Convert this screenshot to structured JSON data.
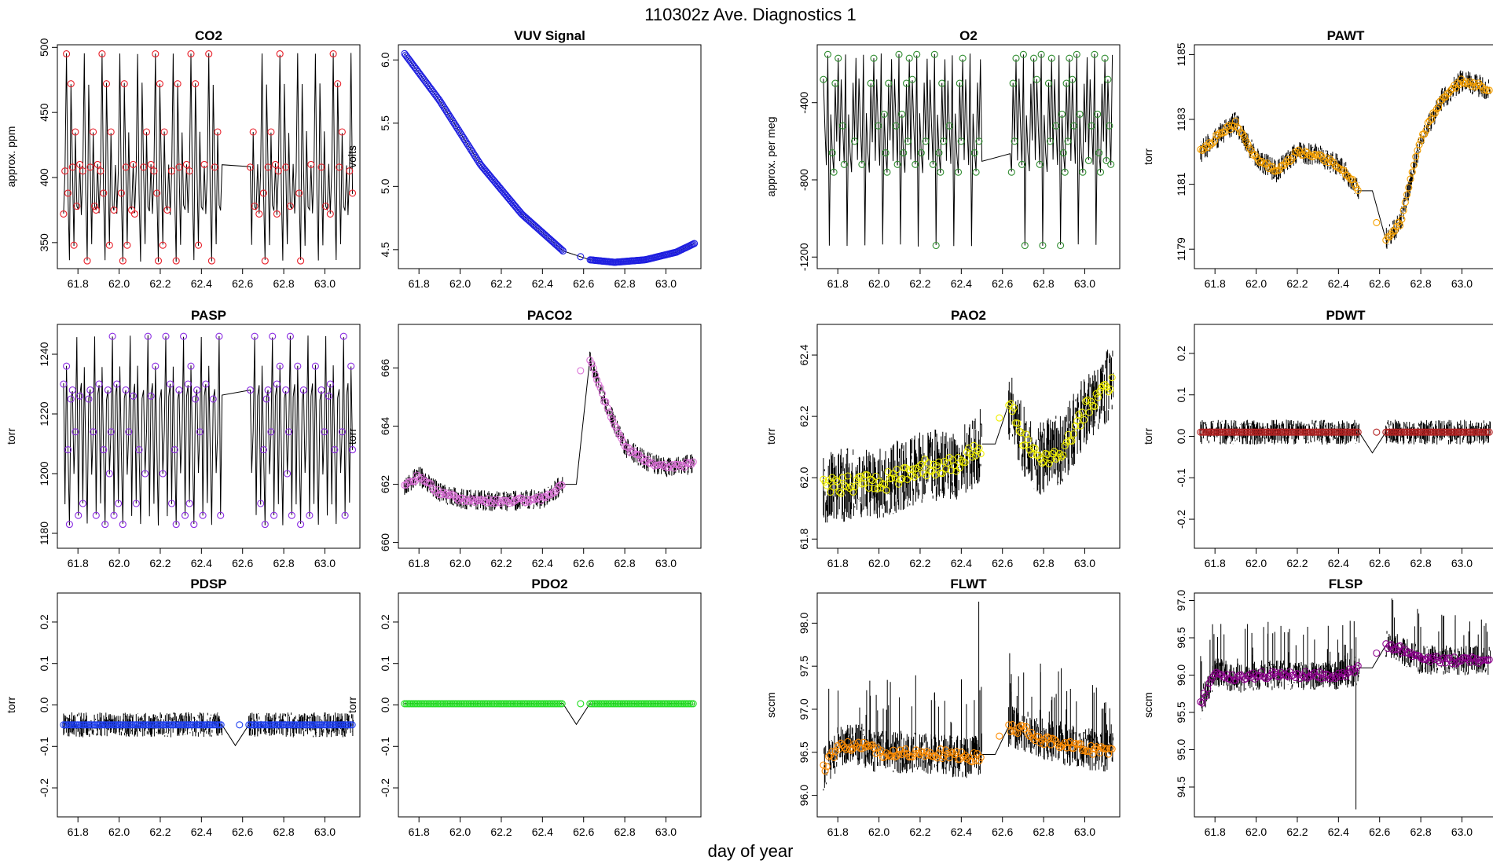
{
  "figure": {
    "title": "110302z   Ave. Diagnostics 1",
    "xlabel": "day of year"
  },
  "chart_data": [
    {
      "type": "line",
      "title": "CO2",
      "ylabel": "approx. ppm",
      "xlim": [
        61.7,
        63.17
      ],
      "ylim": [
        330,
        502
      ],
      "yticks": [
        350,
        400,
        450,
        500
      ],
      "xticks": [
        61.8,
        62.0,
        62.2,
        62.4,
        62.6,
        62.8,
        63.0
      ],
      "marker_color": "#e8202a",
      "pattern": "cycle",
      "levels": [
        372,
        405,
        495,
        388,
        336,
        472,
        408,
        348,
        435,
        378,
        375,
        410
      ],
      "noise": 0,
      "gap": [
        62.5,
        62.63
      ]
    },
    {
      "type": "line",
      "title": "VUV Signal",
      "ylabel": "volts",
      "xlim": [
        61.7,
        63.17
      ],
      "ylim": [
        4.35,
        6.12
      ],
      "yticks": [
        4.5,
        5.0,
        5.5,
        6.0
      ],
      "xticks": [
        61.8,
        62.0,
        62.2,
        62.4,
        62.6,
        62.8,
        63.0
      ],
      "marker_color": "#1f1fe0",
      "pattern": "curve",
      "x": [
        61.73,
        61.9,
        62.1,
        62.3,
        62.5,
        62.63,
        62.75,
        62.9,
        63.05,
        63.14
      ],
      "y": [
        6.05,
        5.68,
        5.17,
        4.78,
        4.49,
        4.42,
        4.4,
        4.42,
        4.48,
        4.55
      ],
      "noise": 0,
      "gap": [
        62.5,
        62.63
      ]
    },
    {
      "type": "line",
      "title": "O2",
      "ylabel": "approx. per meg",
      "xlim": [
        61.7,
        63.17
      ],
      "ylim": [
        -1260,
        -100
      ],
      "yticks": [
        -1200,
        -800,
        -400
      ],
      "xticks": [
        61.8,
        62.0,
        62.2,
        62.4,
        62.6,
        62.8,
        63.0
      ],
      "marker_color": "#2e8b2e",
      "pattern": "cycle",
      "levels": [
        -280,
        -520,
        -720,
        -150,
        -1140,
        -460,
        -660,
        -760,
        -300,
        -600,
        -170,
        -700
      ],
      "noise": 0,
      "gap": [
        62.5,
        62.63
      ]
    },
    {
      "type": "line",
      "title": "PAWT",
      "ylabel": "torr",
      "xlim": [
        61.7,
        63.17
      ],
      "ylim": [
        1178.4,
        1185.3
      ],
      "yticks": [
        1179,
        1181,
        1183,
        1185
      ],
      "xticks": [
        61.8,
        62.0,
        62.2,
        62.4,
        62.6,
        62.8,
        63.0
      ],
      "marker_color": "#f5a000",
      "pattern": "curve",
      "x": [
        61.73,
        61.8,
        61.9,
        62.0,
        62.1,
        62.2,
        62.3,
        62.42,
        62.5,
        62.63,
        62.7,
        62.8,
        62.9,
        63.0,
        63.1,
        63.14
      ],
      "y": [
        1182.0,
        1182.4,
        1182.9,
        1181.8,
        1181.4,
        1182.0,
        1181.9,
        1181.5,
        1180.8,
        1179.3,
        1179.8,
        1182.4,
        1183.6,
        1184.2,
        1184.0,
        1183.9
      ],
      "noise": 0.35,
      "gap": [
        62.5,
        62.63
      ]
    },
    {
      "type": "line",
      "title": "PASP",
      "ylabel": "torr",
      "xlim": [
        61.7,
        63.17
      ],
      "ylim": [
        1175,
        1250
      ],
      "yticks": [
        1180,
        1200,
        1220,
        1240
      ],
      "xticks": [
        61.8,
        62.0,
        62.2,
        62.4,
        62.6,
        62.8,
        63.0
      ],
      "marker_color": "#8a2be2",
      "pattern": "cycle",
      "levels": [
        1230,
        1190,
        1236,
        1208,
        1183,
        1225,
        1228,
        1200,
        1214,
        1246,
        1186,
        1226
      ],
      "noise": 0,
      "gap": [
        62.5,
        62.63
      ]
    },
    {
      "type": "line",
      "title": "PACO2",
      "ylabel": "torr",
      "xlim": [
        61.7,
        63.17
      ],
      "ylim": [
        659.8,
        667.5
      ],
      "yticks": [
        660,
        662,
        664,
        666
      ],
      "xticks": [
        61.8,
        62.0,
        62.2,
        62.4,
        62.6,
        62.8,
        63.0
      ],
      "marker_color": "#da70d6",
      "pattern": "curve",
      "x": [
        61.73,
        61.8,
        61.9,
        62.0,
        62.2,
        62.4,
        62.5,
        62.55,
        62.63,
        62.7,
        62.8,
        62.9,
        63.0,
        63.14
      ],
      "y": [
        661.9,
        662.3,
        661.7,
        661.5,
        661.4,
        661.5,
        662.0,
        665.6,
        666.3,
        664.9,
        663.3,
        662.8,
        662.6,
        662.7
      ],
      "noise": 0.35,
      "gap": [
        62.5,
        62.63
      ]
    },
    {
      "type": "line",
      "title": "PAO2",
      "ylabel": "torr",
      "xlim": [
        61.7,
        63.17
      ],
      "ylim": [
        61.77,
        62.5
      ],
      "yticks": [
        61.8,
        62.0,
        62.2,
        62.4
      ],
      "xticks": [
        61.8,
        62.0,
        62.2,
        62.4,
        62.6,
        62.8,
        63.0
      ],
      "marker_color": "#f0f000",
      "pattern": "curve",
      "x": [
        61.73,
        61.9,
        62.0,
        62.2,
        62.4,
        62.5,
        62.63,
        62.7,
        62.78,
        62.9,
        63.0,
        63.14
      ],
      "y": [
        61.97,
        61.98,
        61.98,
        62.03,
        62.05,
        62.11,
        62.24,
        62.13,
        62.06,
        62.1,
        62.22,
        62.32
      ],
      "noise": 0.12,
      "gap": [
        62.5,
        62.63
      ]
    },
    {
      "type": "line",
      "title": "PDWT",
      "ylabel": "torr",
      "xlim": [
        61.7,
        63.17
      ],
      "ylim": [
        -0.27,
        0.27
      ],
      "yticks": [
        -0.2,
        -0.1,
        0.0,
        0.1,
        0.2
      ],
      "xticks": [
        61.8,
        62.0,
        62.2,
        62.4,
        62.6,
        62.8,
        63.0
      ],
      "marker_color": "#b22222",
      "pattern": "flat",
      "level": 0.01,
      "noise": 0.03,
      "gap": [
        62.5,
        62.63
      ]
    },
    {
      "type": "line",
      "title": "PDSP",
      "ylabel": "torr",
      "xlim": [
        61.7,
        63.17
      ],
      "ylim": [
        -0.27,
        0.27
      ],
      "yticks": [
        -0.2,
        -0.1,
        0.0,
        0.1,
        0.2
      ],
      "xticks": [
        61.8,
        62.0,
        62.2,
        62.4,
        62.6,
        62.8,
        63.0
      ],
      "marker_color": "#1e3ff0",
      "pattern": "flat",
      "level": -0.048,
      "noise": 0.03,
      "gap": [
        62.5,
        62.63
      ]
    },
    {
      "type": "line",
      "title": "PDO2",
      "ylabel": "torr",
      "xlim": [
        61.7,
        63.17
      ],
      "ylim": [
        -0.27,
        0.27
      ],
      "yticks": [
        -0.2,
        -0.1,
        0.0,
        0.1,
        0.2
      ],
      "xticks": [
        61.8,
        62.0,
        62.2,
        62.4,
        62.6,
        62.8,
        63.0
      ],
      "marker_color": "#22dd22",
      "pattern": "flat",
      "level": 0.003,
      "noise": 0.002,
      "gap": [
        62.5,
        62.63
      ]
    },
    {
      "type": "line",
      "title": "FLWT",
      "ylabel": "sccm",
      "xlim": [
        61.7,
        63.17
      ],
      "ylim": [
        95.75,
        98.35
      ],
      "yticks": [
        96.0,
        96.5,
        97.0,
        97.5,
        98.0
      ],
      "xticks": [
        61.8,
        62.0,
        62.2,
        62.4,
        62.6,
        62.8,
        63.0
      ],
      "marker_color": "#ff8c00",
      "pattern": "curve",
      "x": [
        61.73,
        61.8,
        61.9,
        62.0,
        62.2,
        62.4,
        62.49,
        62.63,
        62.7,
        62.8,
        63.0,
        63.14
      ],
      "y": [
        96.3,
        96.55,
        96.6,
        96.5,
        96.5,
        96.45,
        96.45,
        96.8,
        96.75,
        96.65,
        96.55,
        96.5
      ],
      "noise": 0.25,
      "gap": [
        62.5,
        62.63
      ]
    },
    {
      "type": "line",
      "title": "FLSP",
      "ylabel": "sccm",
      "xlim": [
        61.7,
        63.17
      ],
      "ylim": [
        94.1,
        97.1
      ],
      "yticks": [
        94.5,
        95.0,
        95.5,
        96.0,
        96.5,
        97.0
      ],
      "xticks": [
        61.8,
        62.0,
        62.2,
        62.4,
        62.6,
        62.8,
        63.0
      ],
      "marker_color": "#8b008b",
      "pattern": "curve",
      "x": [
        61.73,
        61.8,
        61.9,
        62.0,
        62.2,
        62.4,
        62.48,
        62.63,
        62.7,
        62.8,
        63.0,
        63.14
      ],
      "y": [
        95.6,
        96.05,
        95.95,
        96.0,
        96.0,
        96.0,
        96.05,
        96.4,
        96.35,
        96.2,
        96.2,
        96.2
      ],
      "noise": 0.2,
      "gap": [
        62.5,
        62.63
      ]
    }
  ]
}
